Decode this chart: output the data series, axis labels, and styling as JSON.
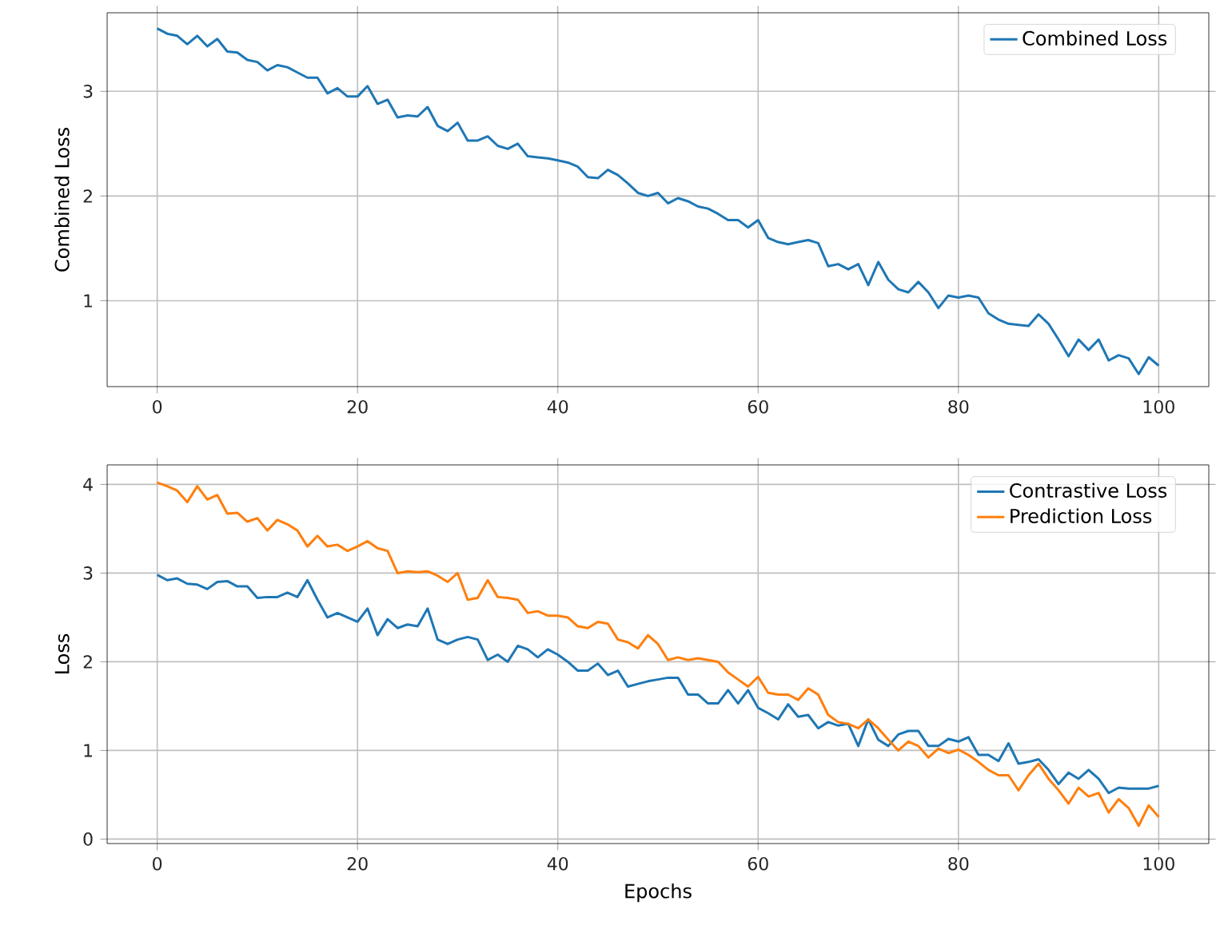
{
  "chart_data": [
    {
      "type": "line",
      "ylabel": "Combined Loss",
      "x": [
        0,
        1,
        2,
        3,
        4,
        5,
        6,
        7,
        8,
        9,
        10,
        11,
        12,
        13,
        14,
        15,
        16,
        17,
        18,
        19,
        20,
        21,
        22,
        23,
        24,
        25,
        26,
        27,
        28,
        29,
        30,
        31,
        32,
        33,
        34,
        35,
        36,
        37,
        38,
        39,
        40,
        41,
        42,
        43,
        44,
        45,
        46,
        47,
        48,
        49,
        50,
        51,
        52,
        53,
        54,
        55,
        56,
        57,
        58,
        59,
        60,
        61,
        62,
        63,
        64,
        65,
        66,
        67,
        68,
        69,
        70,
        71,
        72,
        73,
        74,
        75,
        76,
        77,
        78,
        79,
        80,
        81,
        82,
        83,
        84,
        85,
        86,
        87,
        88,
        89,
        90,
        91,
        92,
        93,
        94,
        95,
        96,
        97,
        98,
        99,
        100
      ],
      "series": [
        {
          "name": "Combined Loss",
          "color": "#1f77b4",
          "values": [
            3.6,
            3.55,
            3.53,
            3.45,
            3.53,
            3.43,
            3.5,
            3.38,
            3.37,
            3.3,
            3.28,
            3.2,
            3.25,
            3.23,
            3.18,
            3.13,
            3.13,
            2.98,
            3.03,
            2.95,
            2.95,
            3.05,
            2.88,
            2.92,
            2.75,
            2.77,
            2.76,
            2.85,
            2.67,
            2.62,
            2.7,
            2.53,
            2.53,
            2.57,
            2.48,
            2.45,
            2.5,
            2.38,
            2.37,
            2.36,
            2.34,
            2.32,
            2.28,
            2.18,
            2.17,
            2.25,
            2.2,
            2.12,
            2.03,
            2.0,
            2.03,
            1.93,
            1.98,
            1.95,
            1.9,
            1.88,
            1.83,
            1.77,
            1.77,
            1.7,
            1.77,
            1.6,
            1.56,
            1.54,
            1.56,
            1.58,
            1.55,
            1.33,
            1.35,
            1.3,
            1.35,
            1.15,
            1.37,
            1.2,
            1.11,
            1.08,
            1.18,
            1.08,
            0.93,
            1.05,
            1.03,
            1.05,
            1.03,
            0.88,
            0.82,
            0.78,
            0.77,
            0.76,
            0.87,
            0.78,
            0.63,
            0.47,
            0.63,
            0.53,
            0.63,
            0.43,
            0.48,
            0.45,
            0.3,
            0.46,
            0.38
          ]
        }
      ],
      "xlim": [
        -5,
        105
      ],
      "ylim": [
        0.18,
        3.75
      ],
      "xticks": [
        0,
        20,
        40,
        60,
        80,
        100
      ],
      "yticks": [
        1,
        2,
        3
      ],
      "grid": true,
      "legend": "top right"
    },
    {
      "type": "line",
      "xlabel": "Epochs",
      "ylabel": "Loss",
      "x": [
        0,
        1,
        2,
        3,
        4,
        5,
        6,
        7,
        8,
        9,
        10,
        11,
        12,
        13,
        14,
        15,
        16,
        17,
        18,
        19,
        20,
        21,
        22,
        23,
        24,
        25,
        26,
        27,
        28,
        29,
        30,
        31,
        32,
        33,
        34,
        35,
        36,
        37,
        38,
        39,
        40,
        41,
        42,
        43,
        44,
        45,
        46,
        47,
        48,
        49,
        50,
        51,
        52,
        53,
        54,
        55,
        56,
        57,
        58,
        59,
        60,
        61,
        62,
        63,
        64,
        65,
        66,
        67,
        68,
        69,
        70,
        71,
        72,
        73,
        74,
        75,
        76,
        77,
        78,
        79,
        80,
        81,
        82,
        83,
        84,
        85,
        86,
        87,
        88,
        89,
        90,
        91,
        92,
        93,
        94,
        95,
        96,
        97,
        98,
        99,
        100
      ],
      "series": [
        {
          "name": "Contrastive Loss",
          "color": "#1f77b4",
          "values": [
            2.98,
            2.92,
            2.94,
            2.88,
            2.87,
            2.82,
            2.9,
            2.91,
            2.85,
            2.85,
            2.72,
            2.73,
            2.73,
            2.78,
            2.73,
            2.92,
            2.7,
            2.5,
            2.55,
            2.5,
            2.45,
            2.6,
            2.3,
            2.48,
            2.38,
            2.42,
            2.4,
            2.6,
            2.25,
            2.2,
            2.25,
            2.28,
            2.25,
            2.02,
            2.08,
            2.0,
            2.18,
            2.14,
            2.05,
            2.14,
            2.08,
            2.0,
            1.9,
            1.9,
            1.98,
            1.85,
            1.9,
            1.72,
            1.75,
            1.78,
            1.8,
            1.82,
            1.82,
            1.63,
            1.63,
            1.53,
            1.53,
            1.68,
            1.53,
            1.68,
            1.48,
            1.42,
            1.35,
            1.52,
            1.38,
            1.4,
            1.25,
            1.32,
            1.28,
            1.3,
            1.05,
            1.35,
            1.12,
            1.05,
            1.18,
            1.22,
            1.22,
            1.05,
            1.05,
            1.13,
            1.1,
            1.15,
            0.95,
            0.95,
            0.88,
            1.08,
            0.85,
            0.87,
            0.9,
            0.78,
            0.62,
            0.75,
            0.68,
            0.78,
            0.68,
            0.52,
            0.58,
            0.57,
            0.57,
            0.57,
            0.6
          ]
        },
        {
          "name": "Prediction Loss",
          "color": "#ff7f0e",
          "values": [
            4.02,
            3.98,
            3.93,
            3.8,
            3.98,
            3.83,
            3.88,
            3.67,
            3.68,
            3.58,
            3.62,
            3.48,
            3.6,
            3.55,
            3.48,
            3.3,
            3.42,
            3.3,
            3.32,
            3.25,
            3.3,
            3.36,
            3.28,
            3.25,
            3.0,
            3.02,
            3.01,
            3.02,
            2.97,
            2.9,
            3.0,
            2.7,
            2.72,
            2.92,
            2.73,
            2.72,
            2.7,
            2.55,
            2.57,
            2.52,
            2.52,
            2.5,
            2.4,
            2.38,
            2.45,
            2.43,
            2.25,
            2.22,
            2.15,
            2.3,
            2.2,
            2.02,
            2.05,
            2.02,
            2.04,
            2.02,
            2.0,
            1.88,
            1.8,
            1.72,
            1.83,
            1.65,
            1.63,
            1.63,
            1.57,
            1.7,
            1.63,
            1.4,
            1.32,
            1.3,
            1.25,
            1.35,
            1.25,
            1.12,
            1.0,
            1.1,
            1.05,
            0.92,
            1.02,
            0.97,
            1.01,
            0.95,
            0.87,
            0.78,
            0.72,
            0.72,
            0.55,
            0.72,
            0.85,
            0.68,
            0.55,
            0.4,
            0.58,
            0.48,
            0.52,
            0.3,
            0.45,
            0.35,
            0.15,
            0.38,
            0.25
          ]
        }
      ],
      "xlim": [
        -5,
        105
      ],
      "ylim": [
        -0.05,
        4.22
      ],
      "xticks": [
        0,
        20,
        40,
        60,
        80,
        100
      ],
      "yticks": [
        0,
        1,
        2,
        3,
        4
      ],
      "grid": true,
      "legend": "top right"
    }
  ]
}
